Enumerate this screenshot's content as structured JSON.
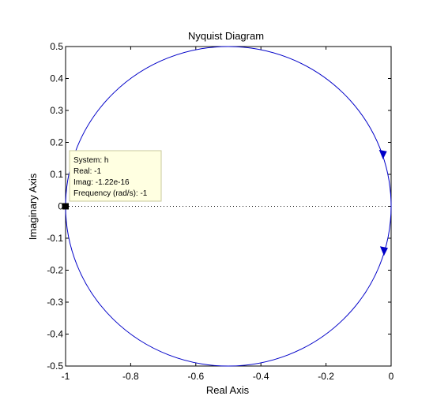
{
  "chart_data": {
    "type": "line",
    "title": "Nyquist Diagram",
    "xlabel": "Real Axis",
    "ylabel": "Imaginary Axis",
    "xlim": [
      -1,
      0
    ],
    "ylim": [
      -0.5,
      0.5
    ],
    "grid": false,
    "x_ticks": [
      -1,
      -0.8,
      -0.6,
      -0.4,
      -0.2,
      0
    ],
    "x_tick_labels": [
      "-1",
      "-0.8",
      "-0.6",
      "-0.4",
      "-0.2",
      "0"
    ],
    "y_ticks": [
      0.5,
      0.4,
      0.3,
      0.2,
      0.1,
      0,
      -0.1,
      -0.2,
      -0.3,
      -0.4,
      -0.5
    ],
    "y_tick_labels": [
      "0.5",
      "0.4",
      "0.3",
      "0.2",
      "0.1",
      "0",
      "-0.1",
      "-0.2",
      "-0.3",
      "-0.4",
      "-0.5"
    ],
    "series": [
      {
        "shape": "circle",
        "center": [
          -0.5,
          0
        ],
        "radius": 0.5,
        "color": "#0000c8"
      }
    ],
    "reference_line": {
      "y": 0,
      "style": "dotted",
      "color": "#000000"
    },
    "direction_arrows": [
      {
        "x": -0.025,
        "y": 0.157,
        "heading": "down"
      },
      {
        "x": -0.022,
        "y": -0.145,
        "heading": "down"
      }
    ],
    "marker": {
      "x": -1,
      "y": 0
    },
    "datatip": {
      "lines": [
        "System: h",
        "Real: -1",
        "Imag: -1.22e-16",
        "Frequency (rad/s): -1"
      ],
      "background": "#ffffe1",
      "border": "#c8c89b"
    }
  }
}
